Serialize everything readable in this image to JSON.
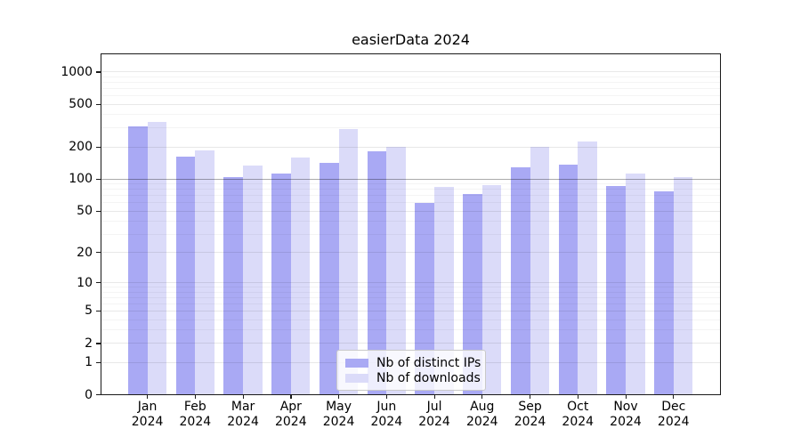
{
  "title": "easierData 2024",
  "colors": {
    "bar_distinct_ips": "#a9a9f4",
    "bar_downloads": "#dbdbf9",
    "axis": "#1a1a1a",
    "grid_minor": "#f3f3f3",
    "grid_major": "#e8e8e8",
    "grid_emphasis": "#aaaaaa",
    "legend_border": "#c9c9c9",
    "background": "#ffffff"
  },
  "chart_data": {
    "type": "bar",
    "title": "easierData 2024",
    "months": [
      "Jan",
      "Feb",
      "Mar",
      "Apr",
      "May",
      "Jun",
      "Jul",
      "Aug",
      "Sep",
      "Oct",
      "Nov",
      "Dec"
    ],
    "year": "2024",
    "categories": [
      "Jan 2024",
      "Feb 2024",
      "Mar 2024",
      "Apr 2024",
      "May 2024",
      "Jun 2024",
      "Jul 2024",
      "Aug 2024",
      "Sep 2024",
      "Oct 2024",
      "Nov 2024",
      "Dec 2024"
    ],
    "series": [
      {
        "name": "Nb of distinct IPs",
        "color": "#a9a9f4",
        "values": [
          310,
          162,
          104,
          112,
          142,
          184,
          60,
          72,
          130,
          136,
          87,
          77
        ]
      },
      {
        "name": "Nb of downloads",
        "color": "#dbdbf9",
        "values": [
          340,
          185,
          133,
          160,
          295,
          200,
          85,
          88,
          201,
          224,
          112,
          105
        ]
      }
    ],
    "yscale": "log10(value+1)",
    "yticks": [
      0,
      1,
      2,
      5,
      10,
      20,
      50,
      100,
      200,
      500,
      1000
    ],
    "ytick_minor": [
      3,
      4,
      6,
      7,
      8,
      9,
      30,
      40,
      60,
      70,
      80,
      90,
      300,
      400,
      600,
      700,
      800,
      900
    ],
    "ylim": [
      0,
      1480
    ],
    "emphasis_gridline": 100,
    "grid": true,
    "legend_position": "lower center",
    "xlabel": "",
    "ylabel": ""
  }
}
